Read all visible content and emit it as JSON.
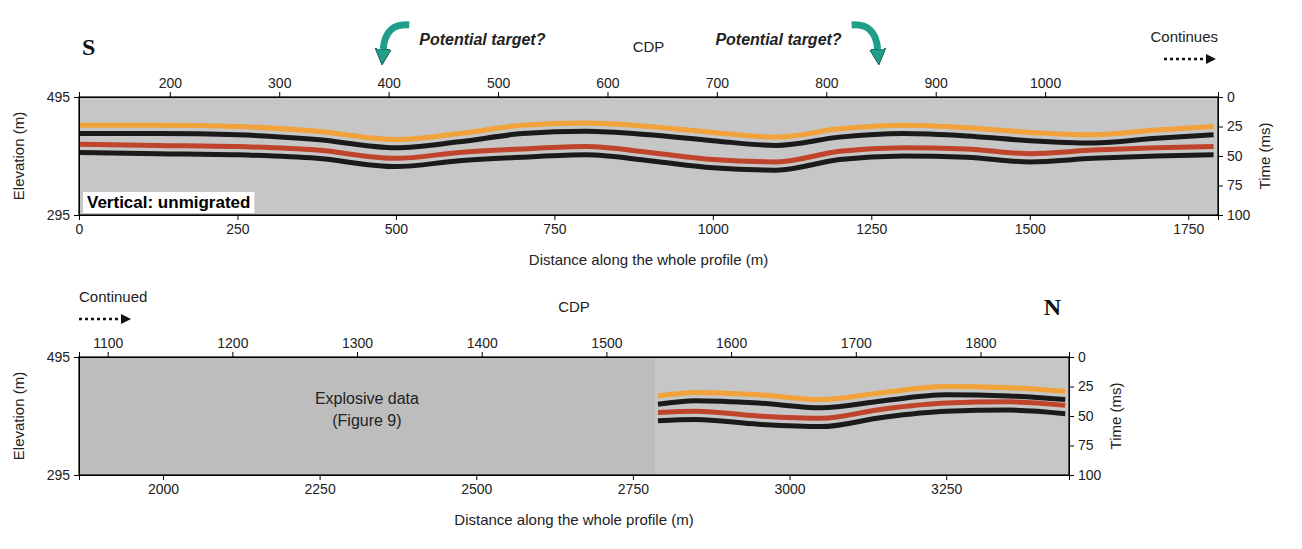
{
  "chart_data": [
    {
      "type": "line",
      "xlabel": "Distance along the whole profile (m)",
      "xlim": [
        0,
        1797
      ],
      "xticks": [
        0,
        250,
        500,
        750,
        1000,
        1250,
        1500,
        1750
      ],
      "x2label": "CDP",
      "x2lim": [
        117,
        1158
      ],
      "x2ticks": [
        200,
        300,
        400,
        500,
        600,
        700,
        800,
        900,
        1000
      ],
      "ylabel": "Elevation (m)",
      "ylim": [
        295,
        495
      ],
      "yticks": [
        295,
        495
      ],
      "y2label": "Time (ms)",
      "y2lim": [
        100,
        0
      ],
      "y2ticks": [
        0,
        25,
        50,
        75,
        100
      ],
      "series": [
        {
          "color": "#f2a23a",
          "axis": "y2",
          "x": [
            0,
            125,
            250,
            375,
            500,
            600,
            700,
            800,
            900,
            1000,
            1100,
            1200,
            1300,
            1400,
            1500,
            1600,
            1700,
            1790
          ],
          "values": [
            24,
            24,
            25,
            29,
            36,
            31,
            24,
            22,
            25,
            30,
            34,
            27,
            24,
            26,
            30,
            32,
            28,
            25
          ]
        },
        {
          "color": "#1a1a1a",
          "axis": "y2",
          "x": [
            0,
            125,
            250,
            375,
            500,
            600,
            700,
            800,
            900,
            1000,
            1100,
            1200,
            1300,
            1400,
            1500,
            1600,
            1700,
            1790
          ],
          "values": [
            31,
            31,
            32,
            36,
            43,
            38,
            31,
            29,
            32,
            37,
            41,
            34,
            31,
            33,
            37,
            39,
            35,
            32
          ]
        },
        {
          "color": "#c0432b",
          "axis": "y2",
          "x": [
            0,
            125,
            250,
            375,
            500,
            600,
            700,
            800,
            900,
            1000,
            1100,
            1200,
            1300,
            1400,
            1500,
            1600,
            1700,
            1790
          ],
          "values": [
            40,
            41,
            42,
            45,
            52,
            47,
            44,
            42,
            47,
            53,
            55,
            46,
            43,
            44,
            48,
            45,
            43,
            42
          ]
        },
        {
          "color": "#1a1a1a",
          "axis": "y2",
          "x": [
            0,
            125,
            250,
            375,
            500,
            600,
            700,
            800,
            900,
            1000,
            1100,
            1200,
            1300,
            1400,
            1500,
            1600,
            1700,
            1790
          ],
          "values": [
            47,
            48,
            49,
            52,
            59,
            54,
            51,
            49,
            54,
            60,
            62,
            53,
            50,
            51,
            55,
            52,
            50,
            49
          ]
        }
      ],
      "side_label": "S",
      "continue_label": "Continues",
      "note": "Vertical: unmigrated",
      "targets": [
        {
          "text": "Potential target?",
          "x": 480
        },
        {
          "text": "Potential target?",
          "x": 1260
        }
      ]
    },
    {
      "type": "line",
      "xlabel": "Distance along the whole profile (m)",
      "xlim": [
        1866,
        3446
      ],
      "xticks": [
        2000,
        2250,
        2500,
        2750,
        3000,
        3250
      ],
      "x2label": "CDP",
      "x2lim": [
        1077,
        1871
      ],
      "x2ticks": [
        1100,
        1200,
        1300,
        1400,
        1500,
        1600,
        1700,
        1800
      ],
      "ylabel": "Elevation (m)",
      "ylim": [
        295,
        495
      ],
      "yticks": [
        295,
        495
      ],
      "y2label": "Time (ms)",
      "y2lim": [
        100,
        0
      ],
      "y2ticks": [
        0,
        25,
        50,
        75,
        100
      ],
      "regions": [
        {
          "x": [
            1866,
            2785
          ],
          "color": "#bdbdbd",
          "labels": [
            "Explosive data",
            "(Figure 9)"
          ]
        }
      ],
      "series": [
        {
          "color": "#f2a23a",
          "axis": "y2",
          "x": [
            2790,
            2850,
            2950,
            3050,
            3150,
            3250,
            3350,
            3440
          ],
          "values": [
            33,
            30,
            32,
            36,
            30,
            25,
            26,
            29
          ]
        },
        {
          "color": "#1a1a1a",
          "axis": "y2",
          "x": [
            2790,
            2850,
            2950,
            3050,
            3150,
            3250,
            3350,
            3440
          ],
          "values": [
            40,
            37,
            39,
            43,
            37,
            32,
            33,
            36
          ]
        },
        {
          "color": "#c0432b",
          "axis": "y2",
          "x": [
            2790,
            2850,
            2950,
            3050,
            3150,
            3250,
            3350,
            3440
          ],
          "values": [
            47,
            46,
            50,
            52,
            44,
            39,
            38,
            41
          ]
        },
        {
          "color": "#1a1a1a",
          "axis": "y2",
          "x": [
            2790,
            2850,
            2950,
            3050,
            3150,
            3250,
            3350,
            3440
          ],
          "values": [
            54,
            53,
            57,
            59,
            51,
            46,
            45,
            48
          ]
        }
      ],
      "side_label": "N",
      "continue_label": "Continued"
    }
  ]
}
